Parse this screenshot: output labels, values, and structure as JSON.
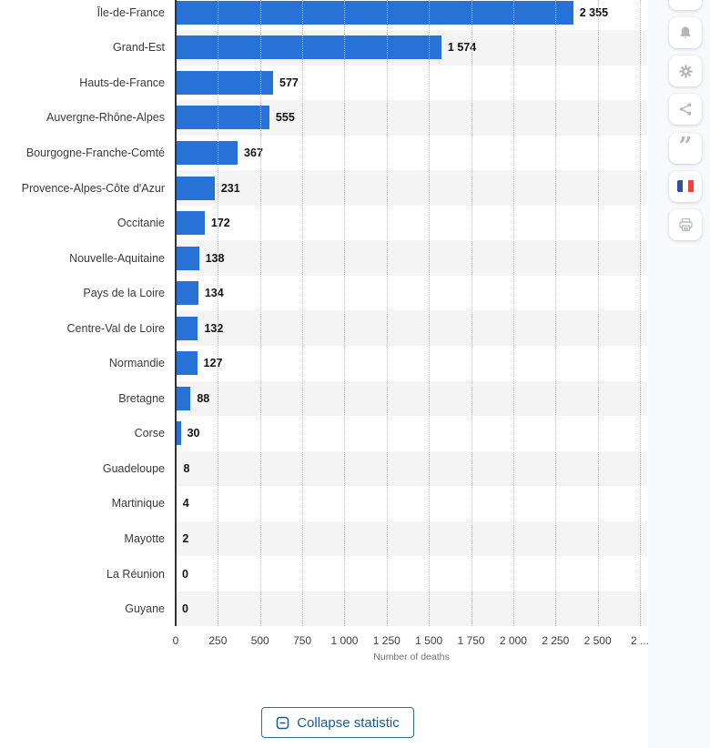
{
  "chart_data": {
    "type": "bar",
    "orientation": "horizontal",
    "xlabel": "Number of deaths",
    "categories": [
      "Île-de-France",
      "Grand-Est",
      "Hauts-de-France",
      "Auvergne-Rhône-Alpes",
      "Bourgogne-Franche-Comté",
      "Provence-Alpes-Côte d'Azur",
      "Occitanie",
      "Nouvelle-Aquitaine",
      "Pays de la Loire",
      "Centre-Val de Loire",
      "Normandie",
      "Bretagne",
      "Corse",
      "Guadeloupe",
      "Martinique",
      "Mayotte",
      "La Réunion",
      "Guyane"
    ],
    "values": [
      2355,
      1574,
      577,
      555,
      367,
      231,
      172,
      138,
      134,
      132,
      127,
      88,
      30,
      8,
      4,
      2,
      0,
      0
    ],
    "value_labels": [
      "2 355",
      "1 574",
      "577",
      "555",
      "367",
      "231",
      "172",
      "138",
      "134",
      "132",
      "127",
      "88",
      "30",
      "8",
      "4",
      "2",
      "0",
      "0"
    ],
    "xlim": [
      0,
      2750
    ],
    "x_ticks": [
      {
        "value": 0,
        "label": "0"
      },
      {
        "value": 250,
        "label": "250"
      },
      {
        "value": 500,
        "label": "500"
      },
      {
        "value": 750,
        "label": "750"
      },
      {
        "value": 1000,
        "label": "1 000"
      },
      {
        "value": 1250,
        "label": "1 250"
      },
      {
        "value": 1500,
        "label": "1 500"
      },
      {
        "value": 1750,
        "label": "1 750"
      },
      {
        "value": 2000,
        "label": "2 000"
      },
      {
        "value": 2250,
        "label": "2 250"
      },
      {
        "value": 2500,
        "label": "2 500"
      },
      {
        "value": 2750,
        "label": "2 ..."
      }
    ],
    "grid": "dotted-vertical",
    "legend": "none",
    "bar_color": "#2871d6",
    "stripe_color": "#f4f4f4",
    "axis_line_color": "#333333"
  },
  "sidebar": {
    "buttons": [
      {
        "icon": "partial",
        "name": "partial-top-button"
      },
      {
        "icon": "bell",
        "name": "notifications-button"
      },
      {
        "icon": "gear",
        "name": "settings-button"
      },
      {
        "icon": "share",
        "name": "share-button"
      },
      {
        "icon": "quote",
        "name": "citation-button"
      },
      {
        "icon": "flag-france",
        "name": "language-france-button"
      },
      {
        "icon": "printer",
        "name": "print-button"
      }
    ],
    "icon_color": "#b4b7ba",
    "flag_colors": [
      "#31519f",
      "#ffffff",
      "#e8463d"
    ]
  },
  "footer": {
    "collapse_label": "Collapse statistic",
    "accent_color": "#1b5a8d"
  }
}
